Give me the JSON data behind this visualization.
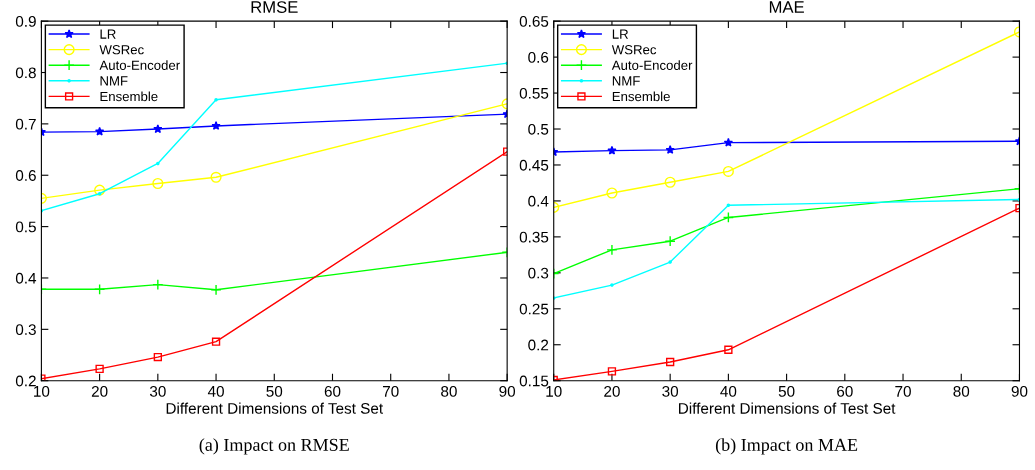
{
  "chart_data": [
    {
      "type": "line",
      "title": "RMSE",
      "xlabel": "Different Dimensions of Test Set",
      "annotations": [
        "(a) Impact on RMSE"
      ],
      "x": [
        10,
        20,
        30,
        40,
        90
      ],
      "xlim": [
        10,
        90
      ],
      "xticks": [
        10,
        20,
        30,
        40,
        50,
        60,
        70,
        80,
        90
      ],
      "ylim": [
        0.2,
        0.9
      ],
      "yticks": [
        0.2,
        0.3,
        0.4,
        0.5,
        0.6,
        0.7,
        0.8,
        0.9
      ],
      "legend": "top left",
      "grid": false,
      "series": [
        {
          "name": "LR",
          "color": "#0000ff",
          "marker": "star",
          "values": [
            0.684,
            0.685,
            0.69,
            0.696,
            0.719
          ]
        },
        {
          "name": "WSRec",
          "color": "#ffff00",
          "marker": "circle",
          "values": [
            0.555,
            0.571,
            0.584,
            0.596,
            0.739
          ]
        },
        {
          "name": "Auto-Encoder",
          "color": "#00ff00",
          "marker": "cross",
          "values": [
            0.378,
            0.378,
            0.387,
            0.377,
            0.45
          ]
        },
        {
          "name": "NMF",
          "color": "#00ffff",
          "marker": "point",
          "values": [
            0.531,
            0.564,
            0.623,
            0.747,
            0.818
          ]
        },
        {
          "name": "Ensemble",
          "color": "#ff0000",
          "marker": "square",
          "values": [
            0.204,
            0.223,
            0.246,
            0.276,
            0.646
          ]
        }
      ]
    },
    {
      "type": "line",
      "title": "MAE",
      "xlabel": "Different Dimensions of Test Set",
      "annotations": [
        "(b) Impact on MAE"
      ],
      "x": [
        10,
        20,
        30,
        40,
        90
      ],
      "xlim": [
        10,
        90
      ],
      "xticks": [
        10,
        20,
        30,
        40,
        50,
        60,
        70,
        80,
        90
      ],
      "ylim": [
        0.15,
        0.65
      ],
      "yticks": [
        0.15,
        0.2,
        0.25,
        0.3,
        0.35,
        0.4,
        0.45,
        0.5,
        0.55,
        0.6,
        0.65
      ],
      "legend": "top left",
      "grid": false,
      "series": [
        {
          "name": "LR",
          "color": "#0000ff",
          "marker": "star",
          "values": [
            0.468,
            0.47,
            0.471,
            0.481,
            0.483
          ]
        },
        {
          "name": "WSRec",
          "color": "#ffff00",
          "marker": "circle",
          "values": [
            0.391,
            0.411,
            0.426,
            0.441,
            0.635
          ]
        },
        {
          "name": "Auto-Encoder",
          "color": "#00ff00",
          "marker": "cross",
          "values": [
            0.299,
            0.332,
            0.344,
            0.377,
            0.417
          ]
        },
        {
          "name": "NMF",
          "color": "#00ffff",
          "marker": "point",
          "values": [
            0.265,
            0.283,
            0.315,
            0.394,
            0.402
          ]
        },
        {
          "name": "Ensemble",
          "color": "#ff0000",
          "marker": "square",
          "values": [
            0.151,
            0.163,
            0.176,
            0.193,
            0.39
          ]
        }
      ]
    }
  ]
}
